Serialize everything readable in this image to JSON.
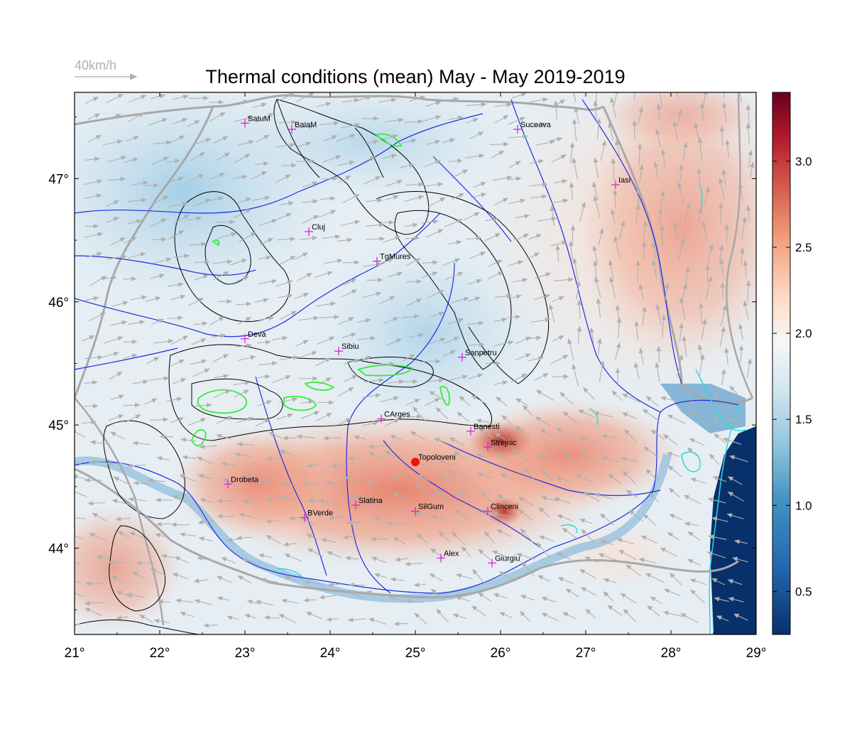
{
  "title": "Thermal conditions (mean) May - May  2019-2019",
  "wind_scale": {
    "label": "40km/h",
    "color": "#b8b8b8"
  },
  "colors": {
    "frame": "#000000",
    "river": "#1f2ee0",
    "border": "#a8a8a8",
    "contour": "#000000",
    "peak_contour": "#33ee33",
    "coast": "#22dddd",
    "marker": "#e020e0",
    "highlight_marker": "#ee1111",
    "arrow": "#b0b0b0"
  },
  "axes": {
    "x_ticks": [
      "21°",
      "22°",
      "23°",
      "24°",
      "25°",
      "26°",
      "27°",
      "28°",
      "29°"
    ],
    "y_ticks": [
      "44°",
      "45°",
      "46°",
      "47°"
    ],
    "x_range": [
      21,
      29
    ],
    "y_range": [
      43.3,
      47.7
    ]
  },
  "colorbar": {
    "labels": [
      "0.5",
      "1.0",
      "1.5",
      "2.0",
      "2.5",
      "3.0"
    ],
    "range": [
      0.25,
      3.4
    ],
    "colormap": [
      "#08306b",
      "#2166ac",
      "#4393c3",
      "#92c5de",
      "#d1e5f0",
      "#f7f7f7",
      "#fddbc7",
      "#f4a582",
      "#d6604d",
      "#b2182b",
      "#67001f"
    ]
  },
  "cities": [
    {
      "name": "SatuM",
      "lon": 23.0,
      "lat": 47.45
    },
    {
      "name": "BaiaM",
      "lon": 23.55,
      "lat": 47.4
    },
    {
      "name": "Suceava",
      "lon": 26.2,
      "lat": 47.4
    },
    {
      "name": "Iasi",
      "lon": 27.35,
      "lat": 46.95
    },
    {
      "name": "Cluj",
      "lon": 23.75,
      "lat": 46.57
    },
    {
      "name": "TgMures",
      "lon": 24.55,
      "lat": 46.33
    },
    {
      "name": "Deva",
      "lon": 23.0,
      "lat": 45.7
    },
    {
      "name": "Sibiu",
      "lon": 24.1,
      "lat": 45.6
    },
    {
      "name": "Sanpetru",
      "lon": 25.55,
      "lat": 45.55
    },
    {
      "name": "CArges",
      "lon": 24.6,
      "lat": 45.05
    },
    {
      "name": "Banesti",
      "lon": 25.65,
      "lat": 44.95
    },
    {
      "name": "Strejnic",
      "lon": 25.85,
      "lat": 44.82
    },
    {
      "name": "Topoloveni",
      "lon": 25.0,
      "lat": 44.7,
      "highlight": true
    },
    {
      "name": "Drobeta",
      "lon": 22.8,
      "lat": 44.52
    },
    {
      "name": "Slatina",
      "lon": 24.3,
      "lat": 44.35
    },
    {
      "name": "SilGum",
      "lon": 25.0,
      "lat": 44.3
    },
    {
      "name": "Clinceni",
      "lon": 25.85,
      "lat": 44.3
    },
    {
      "name": "BVerde",
      "lon": 23.7,
      "lat": 44.25
    },
    {
      "name": "Alex",
      "lon": 25.3,
      "lat": 43.92
    },
    {
      "name": "Giurgiu",
      "lon": 25.9,
      "lat": 43.88
    }
  ]
}
